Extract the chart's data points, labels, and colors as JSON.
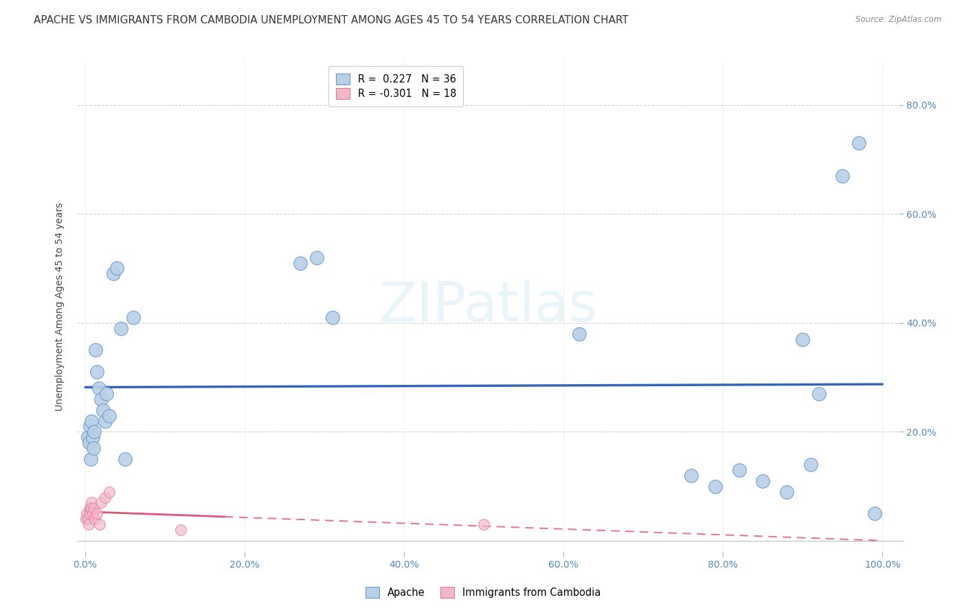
{
  "title": "APACHE VS IMMIGRANTS FROM CAMBODIA UNEMPLOYMENT AMONG AGES 45 TO 54 YEARS CORRELATION CHART",
  "source": "Source: ZipAtlas.com",
  "ylabel": "Unemployment Among Ages 45 to 54 years",
  "watermark": "ZIPatlas",
  "apache_R": 0.227,
  "apache_N": 36,
  "cambodia_R": -0.301,
  "cambodia_N": 18,
  "apache_color": "#b8d0e8",
  "apache_edge_color": "#6699cc",
  "apache_line_color": "#3366bb",
  "cambodia_color": "#f5b8c8",
  "cambodia_edge_color": "#dd7799",
  "cambodia_line_color": "#dd5577",
  "background_color": "#ffffff",
  "xlim": [
    -0.01,
    1.02
  ],
  "ylim": [
    -0.02,
    0.88
  ],
  "apache_x": [
    0.003,
    0.005,
    0.006,
    0.007,
    0.008,
    0.009,
    0.01,
    0.011,
    0.013,
    0.015,
    0.017,
    0.02,
    0.022,
    0.025,
    0.027,
    0.03,
    0.035,
    0.04,
    0.045,
    0.05,
    0.06,
    0.27,
    0.29,
    0.31,
    0.62,
    0.76,
    0.79,
    0.82,
    0.85,
    0.88,
    0.9,
    0.91,
    0.92,
    0.95,
    0.97,
    0.99
  ],
  "apache_y": [
    0.19,
    0.18,
    0.21,
    0.15,
    0.22,
    0.19,
    0.17,
    0.2,
    0.35,
    0.31,
    0.28,
    0.26,
    0.24,
    0.22,
    0.27,
    0.23,
    0.49,
    0.5,
    0.39,
    0.15,
    0.41,
    0.51,
    0.52,
    0.41,
    0.38,
    0.12,
    0.1,
    0.13,
    0.11,
    0.09,
    0.37,
    0.14,
    0.27,
    0.67,
    0.73,
    0.05
  ],
  "cambodia_x": [
    0.001,
    0.002,
    0.003,
    0.004,
    0.005,
    0.006,
    0.007,
    0.008,
    0.009,
    0.01,
    0.012,
    0.015,
    0.018,
    0.02,
    0.025,
    0.03,
    0.12,
    0.5
  ],
  "cambodia_y": [
    0.04,
    0.05,
    0.04,
    0.03,
    0.05,
    0.06,
    0.06,
    0.07,
    0.05,
    0.06,
    0.04,
    0.05,
    0.03,
    0.07,
    0.08,
    0.09,
    0.02,
    0.03
  ],
  "xticks": [
    0.0,
    0.2,
    0.4,
    0.6,
    0.8,
    1.0
  ],
  "xticklabels": [
    "0.0%",
    "20.0%",
    "40.0%",
    "60.0%",
    "80.0%",
    "100.0%"
  ],
  "yticks": [
    0.0,
    0.2,
    0.4,
    0.6,
    0.8
  ],
  "right_yticklabels": [
    "",
    "20.0%",
    "40.0%",
    "60.0%",
    "80.0%"
  ],
  "grid_color": "#cccccc",
  "label_color": "#5588bb",
  "right_label_color": "#5588bb",
  "title_fontsize": 11,
  "axis_label_fontsize": 10,
  "tick_fontsize": 10
}
